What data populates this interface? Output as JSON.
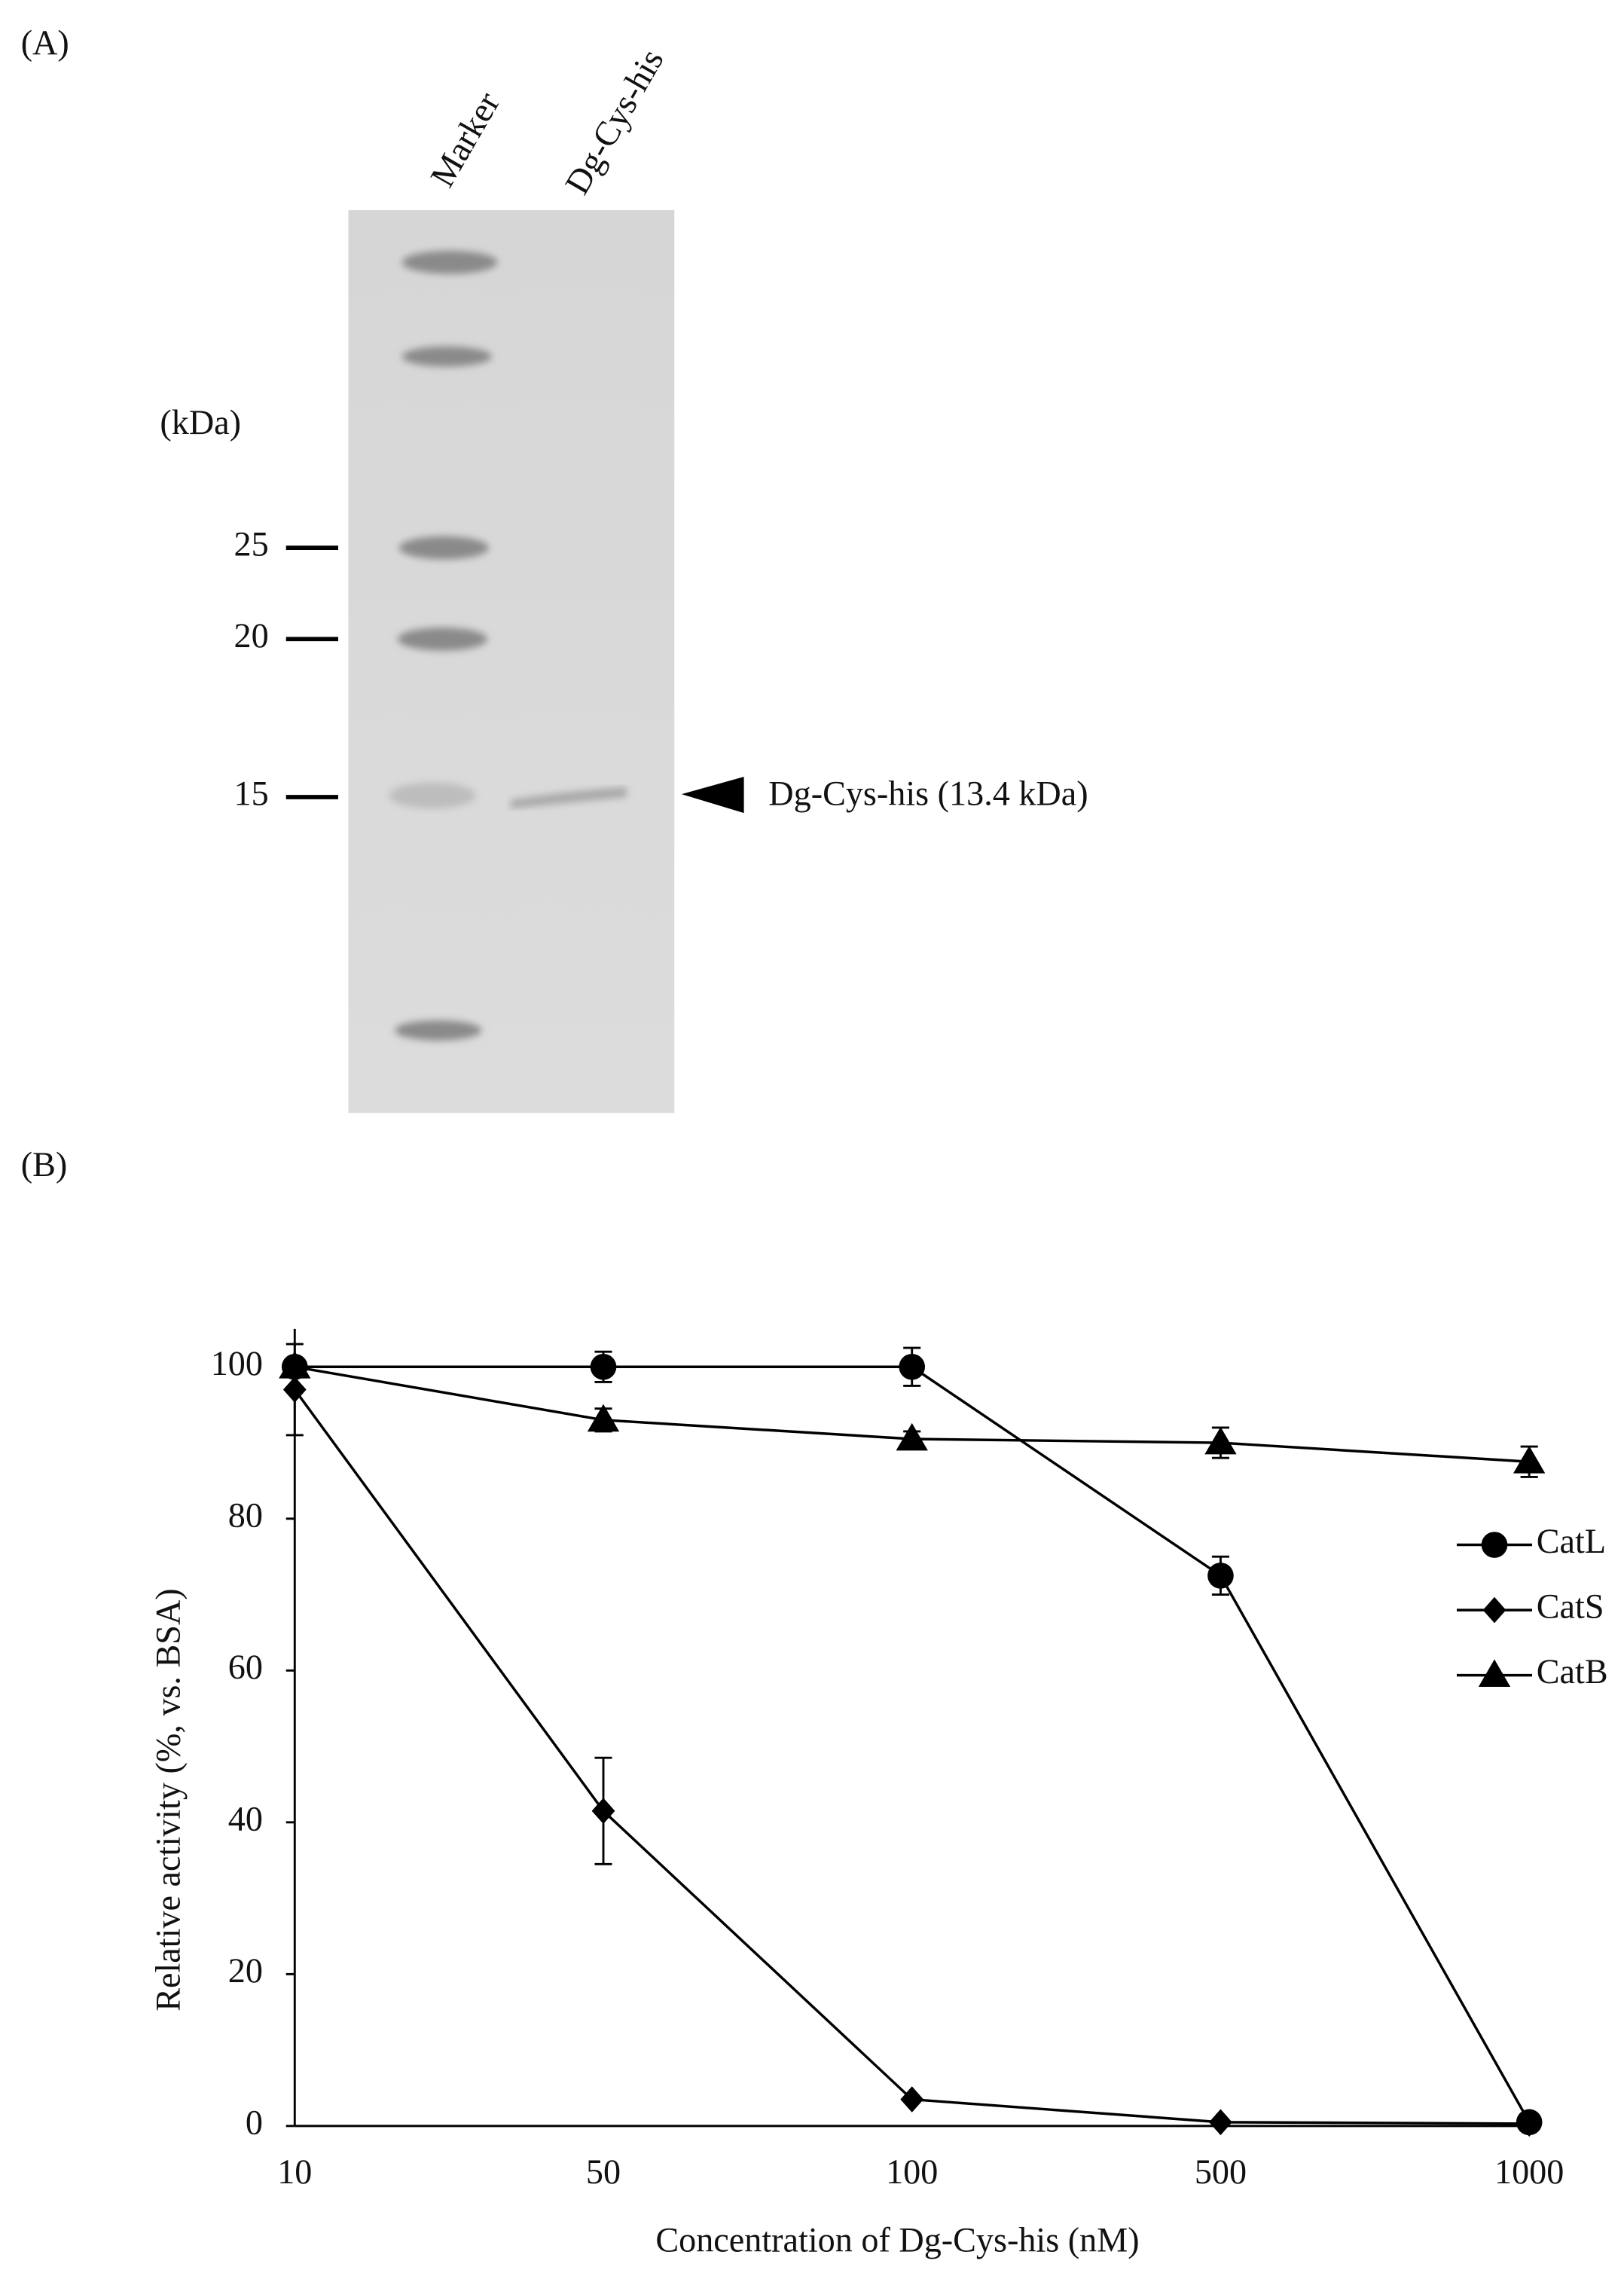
{
  "panel_a": {
    "label": "(A)",
    "lane_labels": [
      "Marker",
      "Dg-Cys-his"
    ],
    "unit_label": "(kDa)",
    "marker_labels": [
      "25",
      "20",
      "15"
    ],
    "band_label": "Dg-Cys-his (13.4 kDa)"
  },
  "panel_b": {
    "label": "(B)"
  },
  "chart_data": {
    "type": "line",
    "x_label": "Concentration of Dg-Cys-his (nM)",
    "y_label": "Relative activity (%, vs. BSA)",
    "categories": [
      10,
      50,
      100,
      500,
      1000
    ],
    "ylim": [
      0,
      105
    ],
    "yticks": [
      0,
      20,
      40,
      60,
      80,
      100
    ],
    "grid": false,
    "legend": "right",
    "series": [
      {
        "name": "CatL",
        "color": "#000000",
        "marker": "circle",
        "values": [
          100,
          100,
          100,
          72.5,
          0.5
        ],
        "errors": [
          1,
          2,
          2.5,
          2.5,
          0
        ]
      },
      {
        "name": "CatS",
        "color": "#000000",
        "marker": "diamond",
        "values": [
          97,
          41.5,
          3.5,
          0.5,
          0.3
        ],
        "errors": [
          6,
          7,
          0,
          0,
          0
        ]
      },
      {
        "name": "CatB",
        "color": "#000000",
        "marker": "triangle",
        "values": [
          100,
          93,
          90.5,
          90,
          87.5
        ],
        "errors": [
          1,
          1.5,
          1,
          2,
          2
        ]
      }
    ]
  }
}
